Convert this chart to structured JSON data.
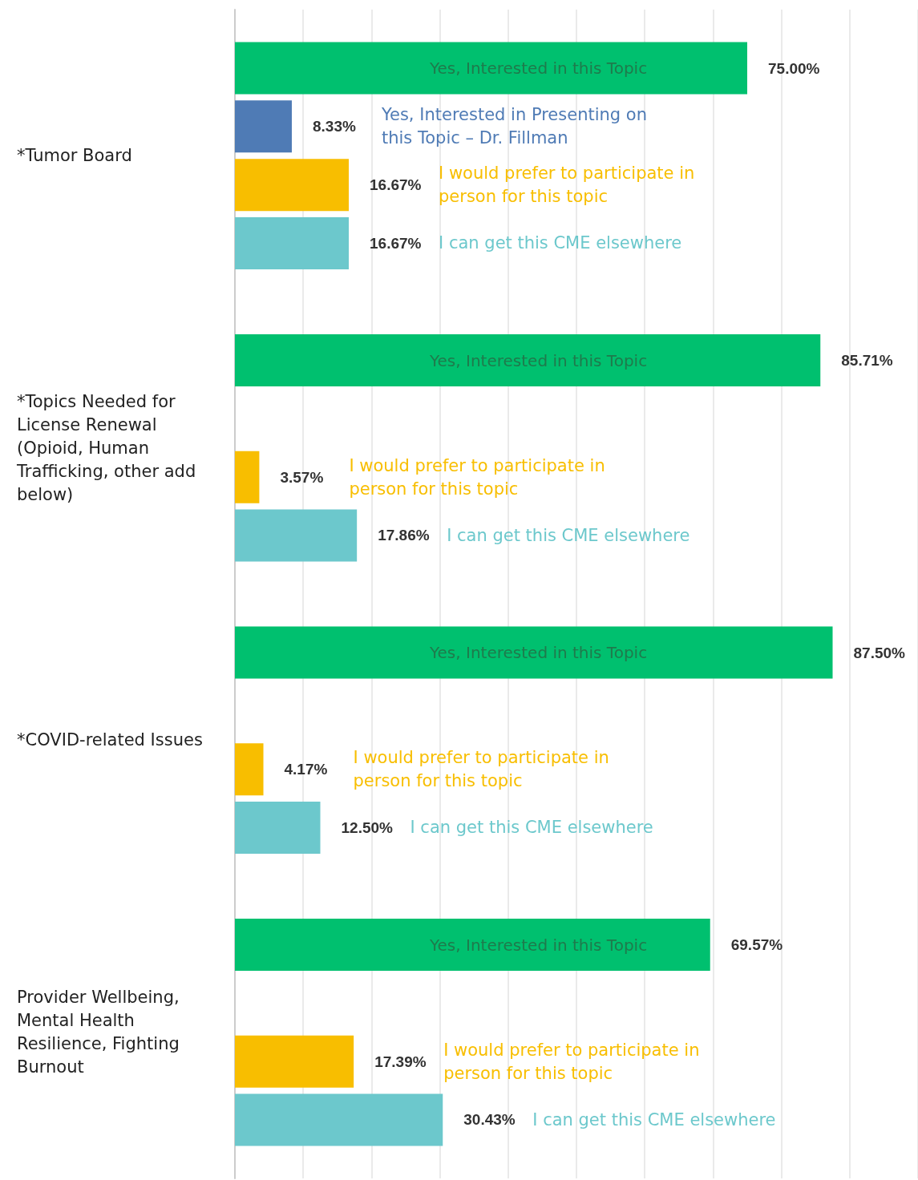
{
  "chart_data": {
    "type": "bar",
    "orientation": "horizontal",
    "categories": [
      "*Tumor Board",
      "*Topics Needed for License Renewal (Opioid, Human Trafficking, other add below)",
      "*COVID-related Issues",
      "Provider Wellbeing, Mental Health Resilience, Fighting Burnout"
    ],
    "series": [
      {
        "name": "Yes, Interested in this Topic",
        "color": "#00c06f",
        "values": [
          75.0,
          85.71,
          87.5,
          69.57
        ],
        "value_labels": [
          "75.00%",
          "85.71%",
          "87.50%",
          "69.57%"
        ]
      },
      {
        "name": "Yes, Interested in Presenting on this Topic – Dr. Fillman",
        "color": "#4f7bb5",
        "values": [
          8.33,
          null,
          null,
          null
        ],
        "value_labels": [
          "8.33%",
          null,
          null,
          null
        ]
      },
      {
        "name": "I would prefer to participate in person for this topic",
        "color": "#f8be00",
        "values": [
          16.67,
          3.57,
          4.17,
          17.39
        ],
        "value_labels": [
          "16.67%",
          "3.57%",
          "4.17%",
          "17.39%"
        ]
      },
      {
        "name": "I can get this CME elsewhere",
        "color": "#6cc8cc",
        "values": [
          16.67,
          17.86,
          12.5,
          30.43
        ],
        "value_labels": [
          "16.67%",
          "17.86%",
          "12.50%",
          "30.43%"
        ]
      }
    ],
    "xlim": [
      0,
      100
    ],
    "xticks": [
      {
        "value": 0,
        "label": null
      },
      {
        "value": 10,
        "label": null
      },
      {
        "value": 20,
        "label": null
      },
      {
        "value": 30,
        "label": null
      },
      {
        "value": 40,
        "label": null
      },
      {
        "value": 50,
        "label": null
      },
      {
        "value": 60,
        "label": null
      },
      {
        "value": 70,
        "label": null
      },
      {
        "value": 80,
        "label": null
      },
      {
        "value": 90,
        "label": null
      },
      {
        "value": 100,
        "label": null
      }
    ],
    "grid": "x",
    "tick_labels": "y"
  }
}
